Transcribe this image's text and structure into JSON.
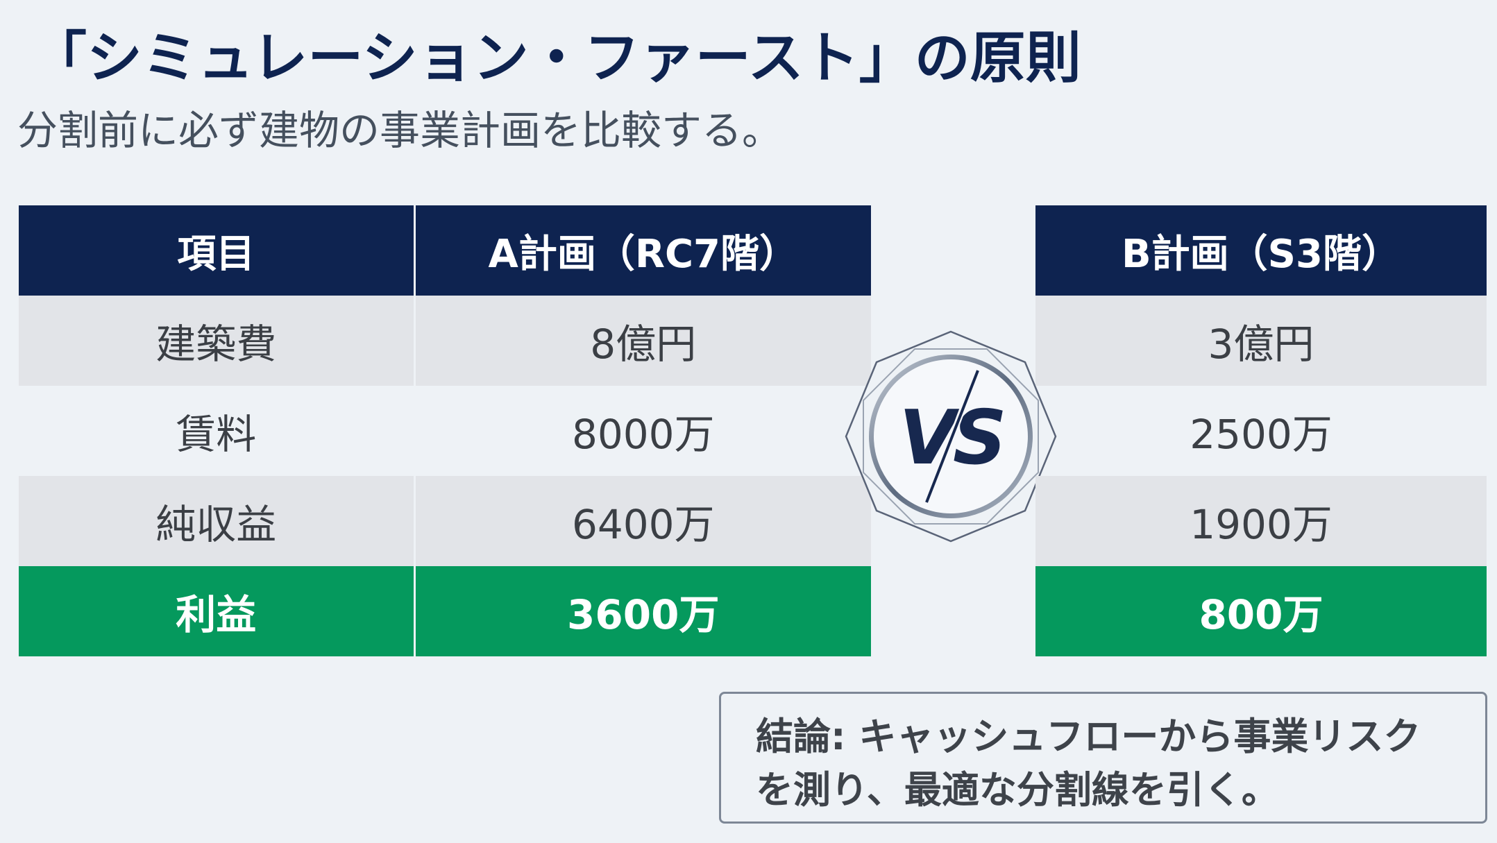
{
  "slide": {
    "title": "「シミュレーション・ファースト」の原則",
    "subtitle": "分割前に必ず建物の事業計画を比較する。"
  },
  "plan_a_table": {
    "headers": [
      "項目",
      "A計画（RC7階）"
    ],
    "rows": [
      [
        "建築費",
        "8億円"
      ],
      [
        "賃料",
        "8000万"
      ],
      [
        "純収益",
        "6400万"
      ],
      [
        "利益",
        "3600万"
      ]
    ]
  },
  "plan_b_table": {
    "header": "B計画（S3階）",
    "rows": [
      "3億円",
      "2500万",
      "1900万",
      "800万"
    ]
  },
  "vs_badge": {
    "label": "VS"
  },
  "conclusion": {
    "line1": "結論: キャッシュフローから事業リスク",
    "line2": "を測り、最適な分割線を引く。"
  },
  "colors": {
    "navy": "#0e2350",
    "green": "#05995d",
    "row_shade": "#e2e4e8",
    "background": "#eef2f6"
  }
}
